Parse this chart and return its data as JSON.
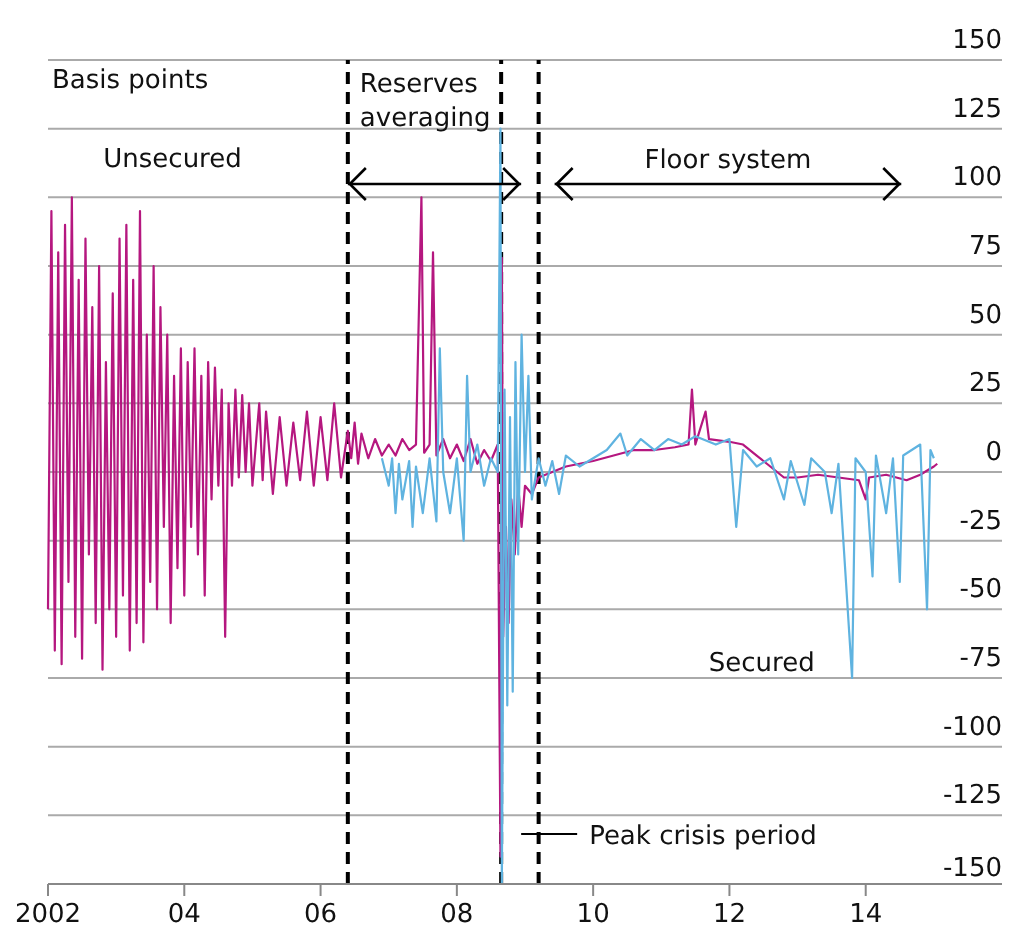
{
  "chart_data": {
    "type": "line",
    "ylabel": "Basis points",
    "xlim": [
      2002,
      2016
    ],
    "xticks": [
      {
        "value": 2002,
        "label": "2002"
      },
      {
        "value": 2004,
        "label": "04"
      },
      {
        "value": 2006,
        "label": "06"
      },
      {
        "value": 2008,
        "label": "08"
      },
      {
        "value": 2010,
        "label": "10"
      },
      {
        "value": 2012,
        "label": "12"
      },
      {
        "value": 2014,
        "label": "14"
      }
    ],
    "ylim": [
      -150,
      150
    ],
    "yticks": [
      -150,
      -125,
      -100,
      -75,
      -50,
      -25,
      0,
      25,
      50,
      75,
      100,
      125,
      150
    ],
    "grid": "y",
    "legend": false,
    "line_style": "solid",
    "marker": "none",
    "series": [
      {
        "name": "Unsecured",
        "color": "#b5177f",
        "x": [
          2002.0,
          2002.05,
          2002.1,
          2002.15,
          2002.2,
          2002.25,
          2002.3,
          2002.35,
          2002.4,
          2002.45,
          2002.5,
          2002.55,
          2002.6,
          2002.65,
          2002.7,
          2002.75,
          2002.8,
          2002.85,
          2002.9,
          2002.95,
          2003.0,
          2003.05,
          2003.1,
          2003.15,
          2003.2,
          2003.25,
          2003.3,
          2003.35,
          2003.4,
          2003.45,
          2003.5,
          2003.55,
          2003.6,
          2003.65,
          2003.7,
          2003.75,
          2003.8,
          2003.85,
          2003.9,
          2003.95,
          2004.0,
          2004.05,
          2004.1,
          2004.15,
          2004.2,
          2004.25,
          2004.3,
          2004.35,
          2004.4,
          2004.45,
          2004.5,
          2004.55,
          2004.6,
          2004.65,
          2004.7,
          2004.75,
          2004.8,
          2004.85,
          2004.9,
          2004.95,
          2005.0,
          2005.1,
          2005.15,
          2005.2,
          2005.3,
          2005.4,
          2005.5,
          2005.6,
          2005.7,
          2005.8,
          2005.9,
          2006.0,
          2006.1,
          2006.2,
          2006.3,
          2006.4,
          2006.45,
          2006.5,
          2006.55,
          2006.6,
          2006.7,
          2006.8,
          2006.9,
          2007.0,
          2007.1,
          2007.2,
          2007.3,
          2007.4,
          2007.48,
          2007.52,
          2007.6,
          2007.65,
          2007.7,
          2007.8,
          2007.9,
          2008.0,
          2008.1,
          2008.2,
          2008.3,
          2008.4,
          2008.5,
          2008.6,
          2008.64,
          2008.66,
          2008.68,
          2008.72,
          2008.76,
          2008.8,
          2008.85,
          2008.9,
          2008.95,
          2009.0,
          2009.1,
          2009.2,
          2009.4,
          2009.6,
          2009.8,
          2010.0,
          2010.3,
          2010.6,
          2010.9,
          2011.2,
          2011.4,
          2011.45,
          2011.5,
          2011.65,
          2011.7,
          2012.0,
          2012.2,
          2012.4,
          2012.6,
          2012.8,
          2013.0,
          2013.3,
          2013.6,
          2013.9,
          2014.0,
          2014.05,
          2014.3,
          2014.6,
          2014.8,
          2015.0,
          2015.05
        ],
        "values": [
          -50,
          95,
          -65,
          80,
          -70,
          90,
          -40,
          100,
          -60,
          70,
          -68,
          85,
          -30,
          60,
          -55,
          75,
          -72,
          40,
          -50,
          65,
          -60,
          85,
          -45,
          90,
          -65,
          70,
          -55,
          95,
          -62,
          50,
          -40,
          75,
          -50,
          60,
          -20,
          50,
          -55,
          35,
          -35,
          45,
          -45,
          40,
          -20,
          45,
          -30,
          35,
          -45,
          40,
          -10,
          38,
          -5,
          30,
          -60,
          25,
          -5,
          30,
          -2,
          28,
          0,
          25,
          -5,
          25,
          -3,
          22,
          -8,
          20,
          -5,
          18,
          -3,
          22,
          -5,
          20,
          -3,
          25,
          -2,
          15,
          5,
          18,
          3,
          14,
          5,
          12,
          6,
          10,
          6,
          12,
          8,
          10,
          100,
          7,
          10,
          80,
          6,
          12,
          5,
          10,
          4,
          12,
          3,
          8,
          4,
          10,
          -140,
          78,
          -60,
          -20,
          -55,
          -10,
          -30,
          -5,
          -20,
          -5,
          -8,
          -2,
          0,
          2,
          3,
          4,
          6,
          8,
          8,
          9,
          10,
          30,
          10,
          22,
          12,
          11,
          10,
          6,
          2,
          -2,
          -2,
          -1,
          -2,
          -3,
          -10,
          -2,
          -1,
          -3,
          -1,
          2,
          3
        ]
      },
      {
        "name": "Secured",
        "color": "#5fb3e0",
        "x": [
          2006.9,
          2007.0,
          2007.05,
          2007.1,
          2007.15,
          2007.2,
          2007.3,
          2007.35,
          2007.4,
          2007.5,
          2007.6,
          2007.7,
          2007.75,
          2007.8,
          2007.9,
          2008.0,
          2008.1,
          2008.15,
          2008.2,
          2008.3,
          2008.4,
          2008.5,
          2008.6,
          2008.64,
          2008.66,
          2008.7,
          2008.74,
          2008.78,
          2008.82,
          2008.86,
          2008.9,
          2008.95,
          2009.0,
          2009.05,
          2009.1,
          2009.2,
          2009.3,
          2009.4,
          2009.5,
          2009.6,
          2009.8,
          2010.0,
          2010.2,
          2010.4,
          2010.5,
          2010.7,
          2010.9,
          2011.1,
          2011.3,
          2011.5,
          2011.8,
          2012.0,
          2012.1,
          2012.2,
          2012.4,
          2012.6,
          2012.8,
          2012.9,
          2013.1,
          2013.2,
          2013.4,
          2013.5,
          2013.6,
          2013.8,
          2013.85,
          2014.0,
          2014.1,
          2014.15,
          2014.3,
          2014.4,
          2014.5,
          2014.55,
          2014.8,
          2014.9,
          2014.95,
          2015.0
        ],
        "values": [
          5,
          -5,
          5,
          -15,
          3,
          -10,
          4,
          -20,
          2,
          -15,
          5,
          -18,
          45,
          0,
          -15,
          5,
          -25,
          35,
          0,
          10,
          -5,
          5,
          0,
          125,
          -150,
          30,
          -85,
          20,
          -80,
          40,
          -30,
          50,
          0,
          35,
          -10,
          5,
          -5,
          4,
          -8,
          6,
          2,
          5,
          8,
          14,
          6,
          12,
          8,
          12,
          10,
          13,
          10,
          12,
          -20,
          8,
          2,
          5,
          -10,
          4,
          -12,
          5,
          0,
          -15,
          3,
          -75,
          5,
          0,
          -38,
          6,
          -15,
          5,
          -40,
          6,
          10,
          -50,
          8,
          5
        ]
      }
    ],
    "ref_lines": [
      {
        "axis": "x",
        "value": 2006.4,
        "color": "#000000",
        "line_style": "dashed"
      },
      {
        "axis": "x",
        "value": 2008.65,
        "color": "#000000",
        "line_style": "dashed"
      },
      {
        "axis": "x",
        "value": 2009.2,
        "color": "#000000",
        "line_style": "dashed"
      }
    ],
    "annotations": [
      "Reserves averaging",
      "Floor system",
      "Peak crisis period"
    ]
  }
}
